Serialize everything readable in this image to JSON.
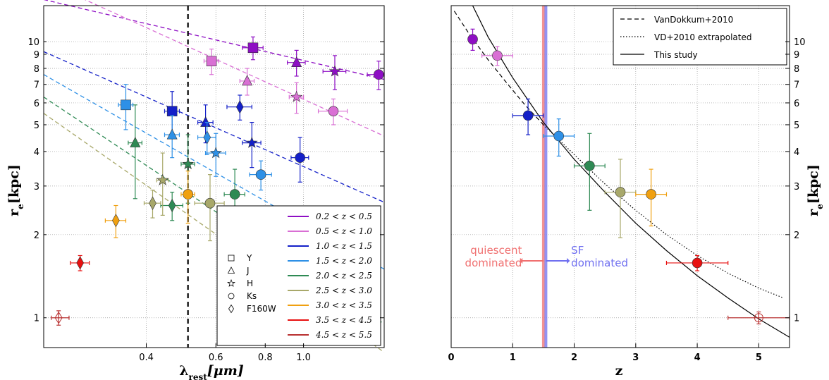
{
  "chart_data": [
    {
      "type": "scatter",
      "xscale": "log",
      "yscale": "log",
      "xlim": [
        0.22,
        1.6
      ],
      "ylim": [
        0.78,
        13.5
      ],
      "xlabel_main": "λ",
      "xlabel_sub": "rest",
      "xlabel_unit": "[μm]",
      "ylabel_main": "r",
      "ylabel_sub": "e",
      "ylabel_unit": "[kpc]",
      "xticks": [
        {
          "v": 0.4,
          "label": "0.4"
        },
        {
          "v": 0.6,
          "label": "0.6"
        },
        {
          "v": 0.8,
          "label": "0.8"
        },
        {
          "v": 1.0,
          "label": "1.0"
        }
      ],
      "yticks": [
        {
          "v": 1,
          "label": "1"
        },
        {
          "v": 2,
          "label": "2"
        },
        {
          "v": 3,
          "label": "3"
        },
        {
          "v": 4,
          "label": "4"
        },
        {
          "v": 5,
          "label": "5"
        },
        {
          "v": 6,
          "label": "6"
        },
        {
          "v": 7,
          "label": "7"
        },
        {
          "v": 8,
          "label": "8"
        },
        {
          "v": 9,
          "label": "9"
        },
        {
          "v": 10,
          "label": "10"
        }
      ],
      "vline_x": 0.51,
      "grid": true,
      "bands": [
        {
          "label": "0.2 < z < 0.5",
          "color": "#8e0fc4"
        },
        {
          "label": "0.5 < z < 1.0",
          "color": "#d96fd4"
        },
        {
          "label": "1.0 < z < 1.5",
          "color": "#1420c8"
        },
        {
          "label": "1.5 < z < 2.0",
          "color": "#2e90e6"
        },
        {
          "label": "2.0 < z < 2.5",
          "color": "#2e8a54"
        },
        {
          "label": "2.5 < z < 3.0",
          "color": "#a8a86a"
        },
        {
          "label": "3.0 < z < 3.5",
          "color": "#f0a010"
        },
        {
          "label": "3.5 < z < 4.5",
          "color": "#e81010"
        },
        {
          "label": "4.5 < z < 5.5",
          "color": "#b83030"
        }
      ],
      "filters": [
        {
          "label": "Y",
          "marker": "square"
        },
        {
          "label": "J",
          "marker": "triangle"
        },
        {
          "label": "H",
          "marker": "star"
        },
        {
          "label": "Ks",
          "marker": "circle"
        },
        {
          "label": "F160W",
          "marker": "diamond"
        }
      ],
      "fit_lines": [
        {
          "band": 0,
          "x": [
            0.22,
            1.6
          ],
          "y": [
            14.2,
            7.3
          ]
        },
        {
          "band": 1,
          "x": [
            0.22,
            1.6
          ],
          "y": [
            16.6,
            4.55
          ]
        },
        {
          "band": 2,
          "x": [
            0.22,
            1.6
          ],
          "y": [
            9.2,
            2.62
          ]
        },
        {
          "band": 3,
          "x": [
            0.22,
            1.6
          ],
          "y": [
            7.6,
            1.5
          ]
        },
        {
          "band": 4,
          "x": [
            0.22,
            1.6
          ],
          "y": [
            6.3,
            0.95
          ]
        },
        {
          "band": 5,
          "x": [
            0.22,
            1.6
          ],
          "y": [
            5.5,
            0.75
          ]
        }
      ],
      "points": [
        {
          "band": 0,
          "m": "square",
          "x": 0.745,
          "y": 9.5,
          "xe": [
            0.045,
            0.045
          ],
          "ye": [
            0.9,
            0.9
          ]
        },
        {
          "band": 0,
          "m": "triangle",
          "x": 0.96,
          "y": 8.4,
          "xe": [
            0.05,
            0.05
          ],
          "ye": [
            0.9,
            0.9
          ]
        },
        {
          "band": 0,
          "m": "star",
          "x": 1.2,
          "y": 7.8,
          "xe": [
            0.08,
            0.08
          ],
          "ye": [
            1.1,
            1.1
          ]
        },
        {
          "band": 0,
          "m": "circle",
          "x": 1.55,
          "y": 7.6,
          "xe": [
            0.1,
            0.05
          ],
          "ye": [
            0.9,
            0.9
          ]
        },
        {
          "band": 1,
          "m": "square",
          "x": 0.585,
          "y": 8.5,
          "xe": [
            0.025,
            0.025
          ],
          "ye": [
            0.9,
            0.9
          ]
        },
        {
          "band": 1,
          "m": "triangle",
          "x": 0.72,
          "y": 7.2,
          "xe": [
            0.03,
            0.03
          ],
          "ye": [
            0.8,
            0.8
          ]
        },
        {
          "band": 1,
          "m": "star",
          "x": 0.96,
          "y": 6.3,
          "xe": [
            0.04,
            0.04
          ],
          "ye": [
            0.8,
            0.8
          ]
        },
        {
          "band": 1,
          "m": "circle",
          "x": 1.19,
          "y": 5.6,
          "xe": [
            0.1,
            0.1
          ],
          "ye": [
            0.6,
            0.6
          ]
        },
        {
          "band": 2,
          "m": "square",
          "x": 0.465,
          "y": 5.6,
          "xe": [
            0.02,
            0.02
          ],
          "ye": [
            1.0,
            1.0
          ]
        },
        {
          "band": 2,
          "m": "triangle",
          "x": 0.565,
          "y": 5.1,
          "xe": [
            0.025,
            0.025
          ],
          "ye": [
            0.8,
            0.8
          ]
        },
        {
          "band": 2,
          "m": "diamond",
          "x": 0.69,
          "y": 5.8,
          "xe": [
            0.05,
            0.05
          ],
          "ye": [
            0.6,
            0.6
          ]
        },
        {
          "band": 2,
          "m": "star",
          "x": 0.74,
          "y": 4.3,
          "xe": [
            0.04,
            0.04
          ],
          "ye": [
            0.8,
            0.8
          ]
        },
        {
          "band": 2,
          "m": "circle",
          "x": 0.98,
          "y": 3.8,
          "xe": [
            0.05,
            0.05
          ],
          "ye": [
            0.7,
            0.7
          ]
        },
        {
          "band": 3,
          "m": "square",
          "x": 0.355,
          "y": 5.9,
          "xe": [
            0.015,
            0.015
          ],
          "ye": [
            1.1,
            1.1
          ]
        },
        {
          "band": 3,
          "m": "triangle",
          "x": 0.465,
          "y": 4.6,
          "xe": [
            0.02,
            0.02
          ],
          "ye": [
            0.8,
            0.8
          ]
        },
        {
          "band": 3,
          "m": "diamond",
          "x": 0.57,
          "y": 4.5,
          "xe": [
            0.03,
            0.03
          ],
          "ye": [
            0.6,
            0.6
          ]
        },
        {
          "band": 3,
          "m": "star",
          "x": 0.6,
          "y": 3.95,
          "xe": [
            0.035,
            0.035
          ],
          "ye": [
            0.7,
            0.7
          ]
        },
        {
          "band": 3,
          "m": "circle",
          "x": 0.78,
          "y": 3.3,
          "xe": [
            0.05,
            0.05
          ],
          "ye": [
            0.4,
            0.4
          ]
        },
        {
          "band": 4,
          "m": "triangle",
          "x": 0.375,
          "y": 4.3,
          "xe": [
            0.015,
            0.015
          ],
          "ye": [
            1.6,
            1.6
          ]
        },
        {
          "band": 4,
          "m": "star",
          "x": 0.51,
          "y": 3.6,
          "xe": [
            0.02,
            0.02
          ],
          "ye": [
            1.0,
            1.0
          ]
        },
        {
          "band": 4,
          "m": "diamond",
          "x": 0.465,
          "y": 2.55,
          "xe": [
            0.03,
            0.03
          ],
          "ye": [
            0.3,
            0.3
          ]
        },
        {
          "band": 4,
          "m": "circle",
          "x": 0.67,
          "y": 2.8,
          "xe": [
            0.04,
            0.04
          ],
          "ye": [
            0.65,
            0.65
          ]
        },
        {
          "band": 5,
          "m": "star",
          "x": 0.44,
          "y": 3.15,
          "xe": [
            0.015,
            0.015
          ],
          "ye": [
            0.8,
            0.8
          ]
        },
        {
          "band": 5,
          "m": "diamond",
          "x": 0.415,
          "y": 2.6,
          "xe": [
            0.02,
            0.02
          ],
          "ye": [
            0.3,
            0.3
          ]
        },
        {
          "band": 5,
          "m": "circle",
          "x": 0.58,
          "y": 2.6,
          "xe": [
            0.05,
            0.05
          ],
          "ye": [
            0.7,
            0.7
          ]
        },
        {
          "band": 6,
          "m": "diamond",
          "x": 0.335,
          "y": 2.25,
          "xe": [
            0.02,
            0.02
          ],
          "ye": [
            0.3,
            0.3
          ]
        },
        {
          "band": 6,
          "m": "circle",
          "x": 0.51,
          "y": 2.8,
          "xe": [
            0.02,
            0.02
          ],
          "ye": [
            0.6,
            0.6
          ]
        },
        {
          "band": 7,
          "m": "diamond",
          "x": 0.272,
          "y": 1.58,
          "xe": [
            0.015,
            0.015
          ],
          "ye": [
            0.1,
            0.1
          ]
        },
        {
          "band": 8,
          "m": "diamond-open",
          "x": 0.24,
          "y": 1.0,
          "xe": [
            0.01,
            0.015
          ],
          "ye": [
            0.06,
            0.06
          ]
        }
      ]
    },
    {
      "type": "scatter",
      "xscale": "linear",
      "yscale": "log",
      "xlim": [
        0,
        5.5
      ],
      "ylim": [
        0.78,
        13.5
      ],
      "xlabel": "z",
      "ylabel_main": "r",
      "ylabel_sub": "e",
      "ylabel_unit": "[kpc]",
      "xticks": [
        {
          "v": 0,
          "label": "0"
        },
        {
          "v": 1,
          "label": "1"
        },
        {
          "v": 2,
          "label": "2"
        },
        {
          "v": 3,
          "label": "3"
        },
        {
          "v": 4,
          "label": "4"
        },
        {
          "v": 5,
          "label": "5"
        }
      ],
      "yticks": [
        {
          "v": 1,
          "label": "1"
        },
        {
          "v": 2,
          "label": "2"
        },
        {
          "v": 3,
          "label": "3"
        },
        {
          "v": 4,
          "label": "4"
        },
        {
          "v": 5,
          "label": "5"
        },
        {
          "v": 6,
          "label": "6"
        },
        {
          "v": 7,
          "label": "7"
        },
        {
          "v": 8,
          "label": "8"
        },
        {
          "v": 9,
          "label": "9"
        },
        {
          "v": 10,
          "label": "10"
        }
      ],
      "grid": true,
      "legend": [
        {
          "label": "VanDokkum+2010",
          "style": "dashed"
        },
        {
          "label": "VD+2010 extrapolated",
          "style": "dotted"
        },
        {
          "label": "This study",
          "style": "solid"
        }
      ],
      "vlines": [
        {
          "x": 1.5,
          "color": "#f08080"
        },
        {
          "x": 1.54,
          "color": "#8080f0"
        }
      ],
      "annotations": [
        {
          "lines": [
            "quiescent",
            "dominated"
          ],
          "color": "#f07070"
        },
        {
          "lines": [
            "SF",
            "dominated"
          ],
          "color": "#7070f0"
        }
      ],
      "curves": [
        {
          "name": "VanDokkum+2010",
          "style": "dashed",
          "x": [
            0.05,
            0.3,
            0.6,
            0.9,
            1.2,
            1.5
          ],
          "y": [
            12.9,
            10.6,
            8.6,
            7.1,
            5.9,
            5.0
          ]
        },
        {
          "name": "VD+2010 extrapolated",
          "style": "dotted",
          "x": [
            1.5,
            2.0,
            2.5,
            3.0,
            3.5,
            4.0,
            4.5,
            5.0,
            5.4
          ],
          "y": [
            5.0,
            3.9,
            3.05,
            2.45,
            2.0,
            1.68,
            1.45,
            1.28,
            1.18
          ]
        },
        {
          "name": "This study",
          "style": "solid",
          "x": [
            0.35,
            0.6,
            1.0,
            1.5,
            2.0,
            2.5,
            3.0,
            3.5,
            4.0,
            4.5,
            5.0,
            5.5
          ],
          "y": [
            13.5,
            10.4,
            7.4,
            5.1,
            3.75,
            2.85,
            2.2,
            1.75,
            1.42,
            1.18,
            0.99,
            0.85
          ]
        }
      ],
      "points": [
        {
          "band": 0,
          "x": 0.35,
          "y": 10.2,
          "xe": [
            0,
            0
          ],
          "ye": [
            0.9,
            0.9
          ]
        },
        {
          "band": 1,
          "x": 0.75,
          "y": 8.9,
          "xe": [
            0.25,
            0.25
          ],
          "ye": [
            0.7,
            0.7
          ]
        },
        {
          "band": 2,
          "x": 1.25,
          "y": 5.4,
          "xe": [
            0.25,
            0.25
          ],
          "ye": [
            0.8,
            0.8
          ]
        },
        {
          "band": 3,
          "x": 1.75,
          "y": 4.55,
          "xe": [
            0.25,
            0.25
          ],
          "ye": [
            0.7,
            0.7
          ]
        },
        {
          "band": 4,
          "x": 2.25,
          "y": 3.55,
          "xe": [
            0.25,
            0.25
          ],
          "ye": [
            1.1,
            1.1
          ]
        },
        {
          "band": 5,
          "x": 2.75,
          "y": 2.85,
          "xe": [
            0.25,
            0.25
          ],
          "ye": [
            0.9,
            0.9
          ]
        },
        {
          "band": 6,
          "x": 3.25,
          "y": 2.8,
          "xe": [
            0.25,
            0.25
          ],
          "ye": [
            0.65,
            0.65
          ]
        },
        {
          "band": 7,
          "x": 4.0,
          "y": 1.58,
          "xe": [
            0.5,
            0.5
          ],
          "ye": [
            0.1,
            0.1
          ]
        },
        {
          "band": 8,
          "x": 5.0,
          "y": 1.0,
          "xe": [
            0.5,
            0.5
          ],
          "ye": [
            0.05,
            0.05
          ],
          "open": true
        }
      ]
    }
  ]
}
